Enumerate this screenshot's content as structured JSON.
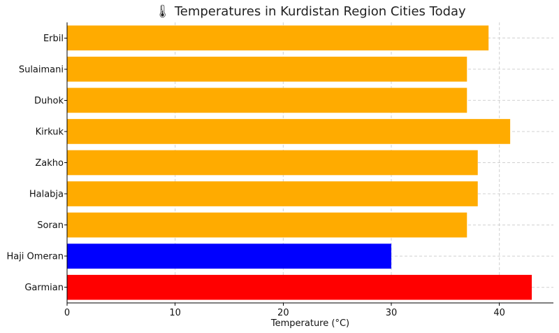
{
  "chart_data": {
    "type": "bar",
    "orientation": "horizontal",
    "title": "🌡 Temperatures in Kurdistan Region Cities Today",
    "xlabel": "Temperature (°C)",
    "ylabel": "",
    "categories": [
      "Erbil",
      "Sulaimani",
      "Duhok",
      "Kirkuk",
      "Zakho",
      "Halabja",
      "Soran",
      "Haji Omeran",
      "Garmian"
    ],
    "values": [
      39,
      37,
      37,
      41,
      38,
      38,
      37,
      30,
      43
    ],
    "colors": [
      "#ffab00",
      "#ffab00",
      "#ffab00",
      "#ffab00",
      "#ffab00",
      "#ffab00",
      "#ffab00",
      "#0000ff",
      "#ff0000"
    ],
    "xlim": [
      0,
      45
    ],
    "xticks": [
      0,
      10,
      20,
      30,
      40
    ],
    "grid": true
  }
}
